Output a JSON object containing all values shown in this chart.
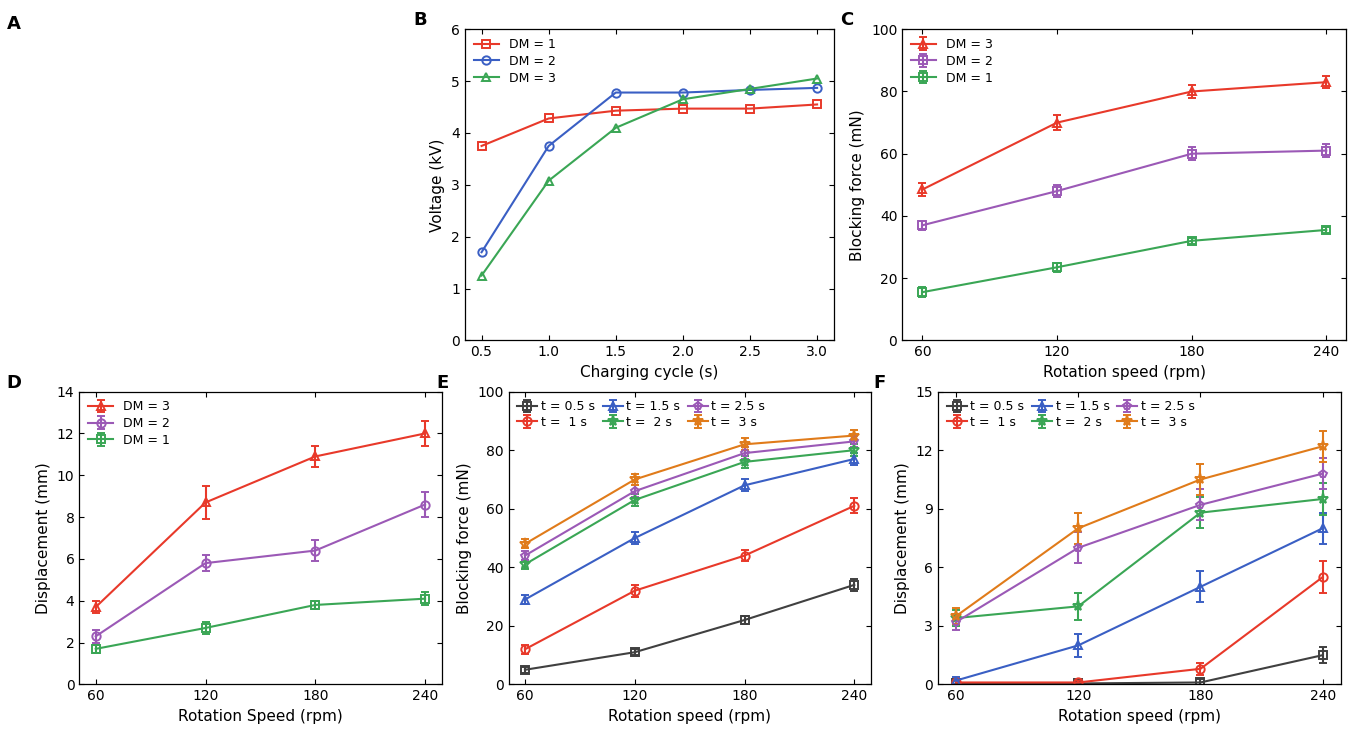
{
  "B": {
    "x": [
      0.5,
      1.0,
      1.5,
      2.0,
      2.5,
      3.0
    ],
    "DM1": [
      3.75,
      4.28,
      4.43,
      4.47,
      4.47,
      4.55
    ],
    "DM2": [
      1.7,
      3.75,
      4.78,
      4.78,
      4.83,
      4.87
    ],
    "DM3": [
      1.25,
      3.08,
      4.1,
      4.65,
      4.85,
      5.05
    ],
    "xlabel": "Charging cycle (s)",
    "ylabel": "Voltage (kV)",
    "ylim": [
      0,
      6
    ],
    "yticks": [
      0,
      1,
      2,
      3,
      4,
      5,
      6
    ],
    "xticks": [
      0.5,
      1.0,
      1.5,
      2.0,
      2.5,
      3.0
    ],
    "xticklabels": [
      "0.5",
      "1.0",
      "1.5",
      "2.0",
      "2.5",
      "3.0"
    ]
  },
  "C": {
    "x": [
      60,
      120,
      180,
      240
    ],
    "DM3": [
      48.5,
      70.0,
      80.0,
      83.0
    ],
    "DM2": [
      37.0,
      48.0,
      60.0,
      61.0
    ],
    "DM1": [
      15.5,
      23.5,
      32.0,
      35.5
    ],
    "DM3_err": [
      2.0,
      2.5,
      2.0,
      2.0
    ],
    "DM2_err": [
      1.5,
      2.0,
      2.0,
      2.0
    ],
    "DM1_err": [
      1.5,
      1.5,
      1.0,
      1.0
    ],
    "xlabel": "Rotation speed (rpm)",
    "ylabel": "Blocking force (mN)",
    "ylim": [
      0,
      100
    ],
    "yticks": [
      0,
      20,
      40,
      60,
      80,
      100
    ],
    "xticks": [
      60,
      120,
      180,
      240
    ]
  },
  "D": {
    "x": [
      60,
      120,
      180,
      240
    ],
    "DM3": [
      3.7,
      8.7,
      10.9,
      12.0
    ],
    "DM2": [
      2.3,
      5.8,
      6.4,
      8.6
    ],
    "DM1": [
      1.7,
      2.7,
      3.8,
      4.1
    ],
    "DM3_err": [
      0.3,
      0.8,
      0.5,
      0.6
    ],
    "DM2_err": [
      0.3,
      0.4,
      0.5,
      0.6
    ],
    "DM1_err": [
      0.2,
      0.3,
      0.2,
      0.3
    ],
    "xlabel": "Rotation Speed (rpm)",
    "ylabel": "Displacement (mm)",
    "ylim": [
      0,
      14
    ],
    "yticks": [
      0,
      2,
      4,
      6,
      8,
      10,
      12,
      14
    ],
    "xticks": [
      60,
      120,
      180,
      240
    ]
  },
  "E": {
    "x": [
      60,
      120,
      180,
      240
    ],
    "t05": [
      5.0,
      11.0,
      22.0,
      34.0
    ],
    "t1": [
      12.0,
      32.0,
      44.0,
      61.0
    ],
    "t15": [
      29.0,
      50.0,
      68.0,
      77.0
    ],
    "t2": [
      41.0,
      63.0,
      76.0,
      80.0
    ],
    "t25": [
      44.0,
      66.0,
      79.0,
      83.0
    ],
    "t3": [
      48.0,
      70.0,
      82.0,
      85.0
    ],
    "t05_err": [
      1.0,
      1.0,
      1.5,
      2.0
    ],
    "t1_err": [
      1.5,
      2.0,
      2.0,
      2.5
    ],
    "t15_err": [
      1.5,
      2.0,
      2.0,
      2.0
    ],
    "t2_err": [
      1.5,
      2.0,
      2.0,
      2.0
    ],
    "t25_err": [
      1.5,
      2.0,
      2.0,
      2.0
    ],
    "t3_err": [
      1.5,
      2.0,
      2.0,
      2.0
    ],
    "xlabel": "Rotation speed (rpm)",
    "ylabel": "Blocking force (mN)",
    "ylim": [
      0,
      100
    ],
    "yticks": [
      0,
      20,
      40,
      60,
      80,
      100
    ],
    "xticks": [
      60,
      120,
      180,
      240
    ]
  },
  "F": {
    "x": [
      60,
      120,
      180,
      240
    ],
    "t05": [
      0.05,
      0.05,
      0.1,
      1.5
    ],
    "t1": [
      0.1,
      0.1,
      0.8,
      5.5
    ],
    "t15": [
      0.2,
      2.0,
      5.0,
      8.0
    ],
    "t2": [
      3.4,
      4.0,
      8.8,
      9.5
    ],
    "t25": [
      3.2,
      7.0,
      9.2,
      10.8
    ],
    "t3": [
      3.5,
      8.0,
      10.5,
      12.2
    ],
    "t05_err": [
      0.1,
      0.1,
      0.2,
      0.4
    ],
    "t1_err": [
      0.1,
      0.15,
      0.3,
      0.8
    ],
    "t15_err": [
      0.2,
      0.6,
      0.8,
      0.8
    ],
    "t2_err": [
      0.4,
      0.7,
      0.8,
      0.8
    ],
    "t25_err": [
      0.4,
      0.8,
      0.8,
      0.8
    ],
    "t3_err": [
      0.4,
      0.8,
      0.8,
      0.8
    ],
    "xlabel": "Rotation speed (rpm)",
    "ylabel": "Displacement (mm)",
    "ylim": [
      0,
      15
    ],
    "yticks": [
      0,
      3,
      6,
      9,
      12,
      15
    ],
    "xticks": [
      60,
      120,
      180,
      240
    ]
  },
  "colors": {
    "red": "#E8392A",
    "blue": "#3A5FC4",
    "green": "#3AA655",
    "purple": "#9B59B6",
    "black": "#222222",
    "orange": "#E07B1A"
  },
  "time_colors": [
    "#404040",
    "#E8392A",
    "#3A5FC4",
    "#3AA655",
    "#9B59B6",
    "#E07B1A"
  ],
  "time_labels": [
    "t = 0.5 s",
    "t =  1 s",
    "t = 1.5 s",
    "t =  2 s",
    "t = 2.5 s",
    "t =  3 s"
  ],
  "time_markers": [
    "s",
    "o",
    "^",
    "p",
    "d",
    "p"
  ],
  "panel_label_fontsize": 13,
  "axis_label_fontsize": 11,
  "tick_fontsize": 10,
  "legend_fontsize": 9,
  "lw": 1.5,
  "ms": 6,
  "capsize": 3
}
